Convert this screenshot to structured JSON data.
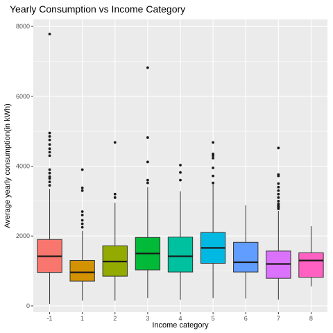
{
  "chart_data": {
    "type": "boxplot",
    "title": "Yearly Consumption vs Income Category",
    "xlabel": "Income category",
    "ylabel": "Average yearly consumption(in kWh)",
    "ylim": [
      -180,
      8200
    ],
    "yticks": [
      0,
      2000,
      4000,
      6000,
      8000
    ],
    "grid": true,
    "legend": "none",
    "categories": [
      "-1",
      "1",
      "2",
      "3",
      "4",
      "5",
      "6",
      "7",
      "8"
    ],
    "boxes": [
      {
        "category": "-1",
        "min": 60,
        "q1": 960,
        "median": 1420,
        "q3": 1900,
        "max": 3350,
        "color": "#F8766D",
        "outliers": [
          3450,
          3550,
          3650,
          3700,
          3800,
          3900,
          4300,
          4400,
          4500,
          4620,
          4750,
          4850,
          4950,
          7780
        ]
      },
      {
        "category": "1",
        "min": 150,
        "q1": 710,
        "median": 960,
        "q3": 1300,
        "max": 2150,
        "color": "#D39200",
        "outliers": [
          2250,
          2350,
          2450,
          2600,
          2700,
          3300,
          3380,
          3900
        ]
      },
      {
        "category": "2",
        "min": 150,
        "q1": 850,
        "median": 1270,
        "q3": 1720,
        "max": 2950,
        "color": "#93AA00",
        "outliers": [
          3100,
          3200,
          4680
        ]
      },
      {
        "category": "3",
        "min": 220,
        "q1": 1030,
        "median": 1500,
        "q3": 1960,
        "max": 3400,
        "color": "#00BA38",
        "outliers": [
          3520,
          3600,
          4120,
          4820,
          6820
        ]
      },
      {
        "category": "4",
        "min": 180,
        "q1": 970,
        "median": 1420,
        "q3": 1970,
        "max": 3280,
        "color": "#00C19F",
        "outliers": [
          3600,
          3820,
          4030
        ]
      },
      {
        "category": "5",
        "min": 220,
        "q1": 1220,
        "median": 1660,
        "q3": 2100,
        "max": 3480,
        "color": "#00B9E3",
        "outliers": [
          3520,
          3720,
          3950,
          4230,
          4300,
          4350,
          4680
        ]
      },
      {
        "category": "6",
        "min": 210,
        "q1": 970,
        "median": 1250,
        "q3": 1820,
        "max": 2880,
        "color": "#619CFF",
        "outliers": []
      },
      {
        "category": "7",
        "min": 180,
        "q1": 790,
        "median": 1200,
        "q3": 1570,
        "max": 2720,
        "color": "#DB72FB",
        "outliers": [
          2780,
          2820,
          2850,
          2880,
          2920,
          3000,
          3100,
          3200,
          3300,
          3400,
          3500,
          3720,
          3760,
          4520
        ]
      },
      {
        "category": "8",
        "min": 560,
        "q1": 820,
        "median": 1300,
        "q3": 1520,
        "max": 2280,
        "color": "#FF61C3",
        "outliers": []
      }
    ]
  }
}
